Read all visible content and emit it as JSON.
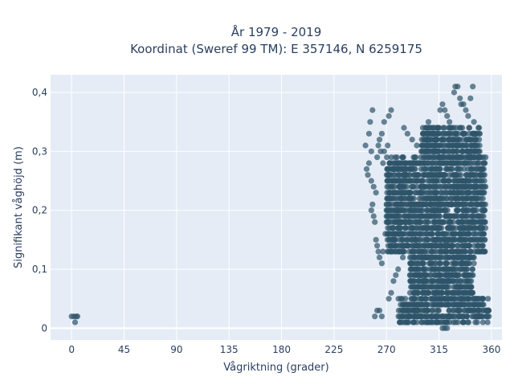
{
  "chart_data": {
    "type": "scatter",
    "title": "År 1979 - 2019",
    "subtitle": "Koordinat (Sweref 99 TM): E 357146, N 6259175",
    "xlabel": "Vågriktning (grader)",
    "ylabel": "Signifikant våghöjd (m)",
    "xlim": [
      -18,
      369
    ],
    "ylim": [
      -0.02,
      0.43
    ],
    "x_ticks": [
      0,
      45,
      90,
      135,
      180,
      225,
      270,
      315,
      360
    ],
    "x_tick_labels": [
      "0",
      "45",
      "90",
      "135",
      "180",
      "225",
      "270",
      "315",
      "360"
    ],
    "y_ticks": [
      0,
      0.1,
      0.2,
      0.3,
      0.4
    ],
    "y_tick_labels": [
      "0",
      "0,1",
      "0,2",
      "0,3",
      "0,4"
    ],
    "grid": true,
    "plot_background": "#e5ecf6",
    "marker_color": "#2e5469",
    "series": [
      {
        "values": [
          [
            0,
            0.02
          ],
          [
            2,
            0.02
          ],
          [
            4,
            0.02
          ],
          [
            5,
            0.02
          ],
          [
            3,
            0.01
          ],
          [
            252,
            0.31
          ],
          [
            255,
            0.33
          ],
          [
            256,
            0.35
          ],
          [
            258,
            0.37
          ],
          [
            257,
            0.3
          ],
          [
            253,
            0.27
          ],
          [
            255,
            0.28
          ],
          [
            257,
            0.25
          ],
          [
            259,
            0.24
          ],
          [
            261,
            0.23
          ],
          [
            254,
            0.26
          ],
          [
            262,
            0.29
          ],
          [
            263,
            0.31
          ],
          [
            264,
            0.32
          ],
          [
            266,
            0.33
          ],
          [
            268,
            0.35
          ],
          [
            272,
            0.36
          ],
          [
            274,
            0.37
          ],
          [
            271,
            0.31
          ],
          [
            268,
            0.3
          ],
          [
            258,
            0.21
          ],
          [
            259,
            0.19
          ],
          [
            257,
            0.2
          ],
          [
            260,
            0.18
          ],
          [
            261,
            0.15
          ],
          [
            262,
            0.14
          ],
          [
            263,
            0.13
          ],
          [
            264,
            0.12
          ],
          [
            266,
            0.11
          ],
          [
            267,
            0.13
          ],
          [
            269,
            0.16
          ],
          [
            270,
            0.19
          ],
          [
            271,
            0.22
          ],
          [
            267,
            0.28
          ],
          [
            265,
            0.3
          ],
          [
            260,
            0.02
          ],
          [
            262,
            0.03
          ],
          [
            264,
            0.03
          ],
          [
            266,
            0.02
          ],
          [
            272,
            0.05
          ],
          [
            274,
            0.06
          ],
          [
            276,
            0.08
          ],
          [
            278,
            0.09
          ],
          [
            280,
            0.1
          ],
          [
            284,
            0.12
          ],
          [
            285,
            0.34
          ],
          [
            288,
            0.33
          ],
          [
            292,
            0.32
          ],
          [
            296,
            0.31
          ],
          [
            300,
            0.3
          ],
          [
            302,
            0.33
          ],
          [
            304,
            0.34
          ],
          [
            306,
            0.35
          ],
          [
            308,
            0.32
          ],
          [
            311,
            0.33
          ],
          [
            314,
            0.34
          ],
          [
            316,
            0.37
          ],
          [
            318,
            0.38
          ],
          [
            320,
            0.37
          ],
          [
            322,
            0.36
          ],
          [
            324,
            0.35
          ],
          [
            326,
            0.34
          ],
          [
            328,
            0.4
          ],
          [
            329,
            0.41
          ],
          [
            331,
            0.41
          ],
          [
            333,
            0.39
          ],
          [
            334,
            0.38
          ],
          [
            336,
            0.38
          ],
          [
            338,
            0.37
          ],
          [
            340,
            0.36
          ],
          [
            342,
            0.39
          ],
          [
            344,
            0.41
          ],
          [
            345,
            0.35
          ],
          [
            347,
            0.32
          ],
          [
            349,
            0.3
          ],
          [
            351,
            0.29
          ],
          [
            352,
            0.27
          ],
          [
            353,
            0.26
          ],
          [
            354,
            0.28
          ],
          [
            355,
            0.29
          ],
          [
            318,
            0.0
          ],
          [
            320,
            0.0
          ],
          [
            322,
            0.0
          ],
          [
            320,
            0.01
          ],
          [
            324,
            0.01
          ]
        ]
      }
    ]
  }
}
